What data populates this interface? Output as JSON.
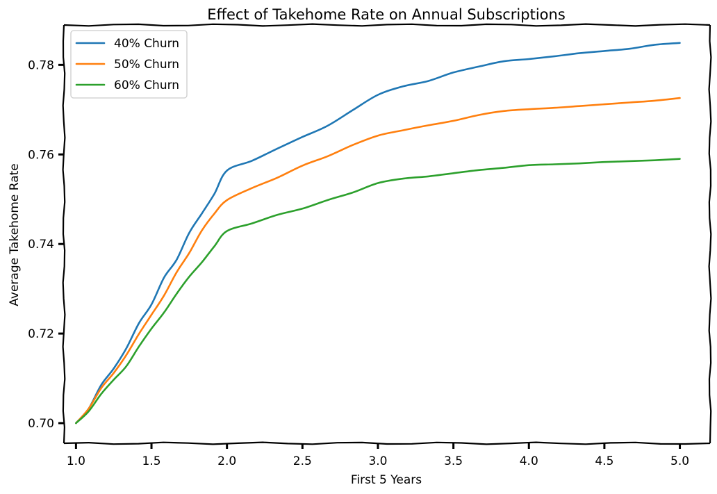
{
  "chart_data": {
    "type": "line",
    "title": "Effect of Takehome Rate on Annual Subscriptions",
    "xlabel": "First 5 Years",
    "ylabel": "Average Takehome Rate",
    "xlim": [
      0.92,
      5.2
    ],
    "ylim": [
      0.6955,
      0.7889
    ],
    "xticks": [
      1.0,
      1.5,
      2.0,
      2.5,
      3.0,
      3.5,
      4.0,
      4.5,
      5.0
    ],
    "xtick_labels": [
      "1.0",
      "1.5",
      "2.0",
      "2.5",
      "3.0",
      "3.5",
      "4.0",
      "4.5",
      "5.0"
    ],
    "yticks": [
      0.7,
      0.72,
      0.74,
      0.76,
      0.78
    ],
    "ytick_labels": [
      "0.70",
      "0.72",
      "0.74",
      "0.76",
      "0.78"
    ],
    "grid": false,
    "legend_position": "top-left",
    "series": [
      {
        "name": "40% Churn",
        "color": "#1f77b4",
        "x": [
          1.0,
          1.0833,
          1.1667,
          1.25,
          1.3333,
          1.4167,
          1.5,
          1.5833,
          1.6667,
          1.75,
          1.8333,
          1.9167,
          2.0,
          2.1667,
          2.3333,
          2.5,
          2.6667,
          2.8333,
          3.0,
          3.1667,
          3.3333,
          3.5,
          3.6667,
          3.8333,
          4.0,
          4.1667,
          4.3333,
          4.5,
          4.6667,
          4.8333,
          5.0
        ],
        "y": [
          0.7,
          0.7032,
          0.7085,
          0.7122,
          0.7167,
          0.7223,
          0.7265,
          0.7325,
          0.7365,
          0.7425,
          0.7468,
          0.7512,
          0.7564,
          0.7586,
          0.7613,
          0.7639,
          0.7664,
          0.7699,
          0.7733,
          0.7752,
          0.7764,
          0.7783,
          0.7796,
          0.7808,
          0.7813,
          0.7819,
          0.7826,
          0.7831,
          0.7836,
          0.7845,
          0.7849
        ]
      },
      {
        "name": "50% Churn",
        "color": "#ff7f0e",
        "x": [
          1.0,
          1.0833,
          1.1667,
          1.25,
          1.3333,
          1.4167,
          1.5,
          1.5833,
          1.6667,
          1.75,
          1.8333,
          1.9167,
          2.0,
          2.1667,
          2.3333,
          2.5,
          2.6667,
          2.8333,
          3.0,
          3.1667,
          3.3333,
          3.5,
          3.6667,
          3.8333,
          4.0,
          4.1667,
          4.3333,
          4.5,
          4.6667,
          4.8333,
          5.0
        ],
        "y": [
          0.7,
          0.7032,
          0.7078,
          0.7112,
          0.7152,
          0.7199,
          0.7242,
          0.7285,
          0.7337,
          0.738,
          0.743,
          0.7468,
          0.7498,
          0.7525,
          0.7548,
          0.7575,
          0.7596,
          0.7621,
          0.7642,
          0.7654,
          0.7665,
          0.7675,
          0.7688,
          0.7697,
          0.7701,
          0.7704,
          0.7708,
          0.7712,
          0.7716,
          0.772,
          0.7726
        ]
      },
      {
        "name": "60% Churn",
        "color": "#2ca02c",
        "x": [
          1.0,
          1.0833,
          1.1667,
          1.25,
          1.3333,
          1.4167,
          1.5,
          1.5833,
          1.6667,
          1.75,
          1.8333,
          1.9167,
          2.0,
          2.1667,
          2.3333,
          2.5,
          2.6667,
          2.8333,
          3.0,
          3.1667,
          3.3333,
          3.5,
          3.6667,
          3.8333,
          4.0,
          4.1667,
          4.3333,
          4.5,
          4.6667,
          4.8333,
          5.0
        ],
        "y": [
          0.7,
          0.7026,
          0.7065,
          0.7097,
          0.7127,
          0.7171,
          0.7211,
          0.7247,
          0.7289,
          0.7327,
          0.7359,
          0.7395,
          0.7429,
          0.7446,
          0.7465,
          0.7479,
          0.7498,
          0.7515,
          0.7536,
          0.7546,
          0.7551,
          0.7558,
          0.7565,
          0.757,
          0.7576,
          0.7578,
          0.758,
          0.7583,
          0.7585,
          0.7587,
          0.759
        ]
      }
    ]
  }
}
